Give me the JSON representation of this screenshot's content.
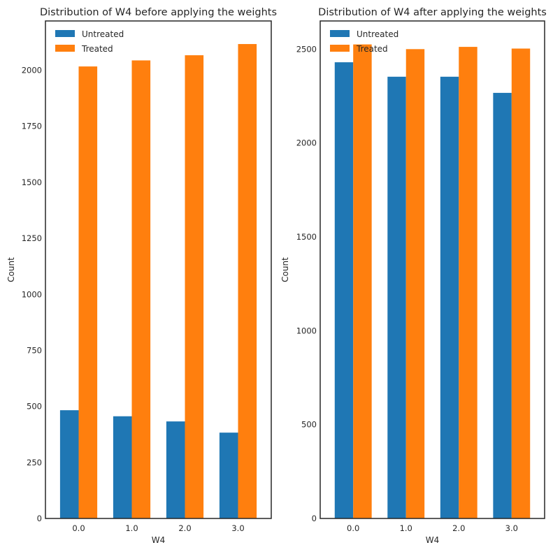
{
  "chart_data": [
    {
      "type": "bar",
      "title": "Distribution of W4 before applying the weights",
      "xlabel": "W4",
      "ylabel": "Count",
      "categories": [
        "0.0",
        "1.0",
        "2.0",
        "3.0"
      ],
      "ylim": [
        0,
        2220
      ],
      "yticks": [
        "0",
        "250",
        "500",
        "750",
        "1000",
        "1250",
        "1500",
        "1750",
        "2000"
      ],
      "legend_position": "top-left",
      "series": [
        {
          "name": "Untreated",
          "color": "#1f77b4",
          "values": [
            483,
            456,
            433,
            383
          ]
        },
        {
          "name": "Treated",
          "color": "#ff7f0e",
          "values": [
            2017,
            2044,
            2067,
            2117
          ]
        }
      ]
    },
    {
      "type": "bar",
      "title": "Distribution of W4 after applying the weights",
      "xlabel": "W4",
      "ylabel": "Count",
      "categories": [
        "0.0",
        "1.0",
        "2.0",
        "3.0"
      ],
      "ylim": [
        0,
        2650
      ],
      "yticks": [
        "0",
        "500",
        "1000",
        "1500",
        "2000",
        "2500"
      ],
      "legend_position": "top-left",
      "series": [
        {
          "name": "Untreated",
          "color": "#1f77b4",
          "values": [
            2430,
            2353,
            2353,
            2267
          ]
        },
        {
          "name": "Treated",
          "color": "#ff7f0e",
          "values": [
            2525,
            2500,
            2512,
            2503
          ]
        }
      ]
    }
  ]
}
